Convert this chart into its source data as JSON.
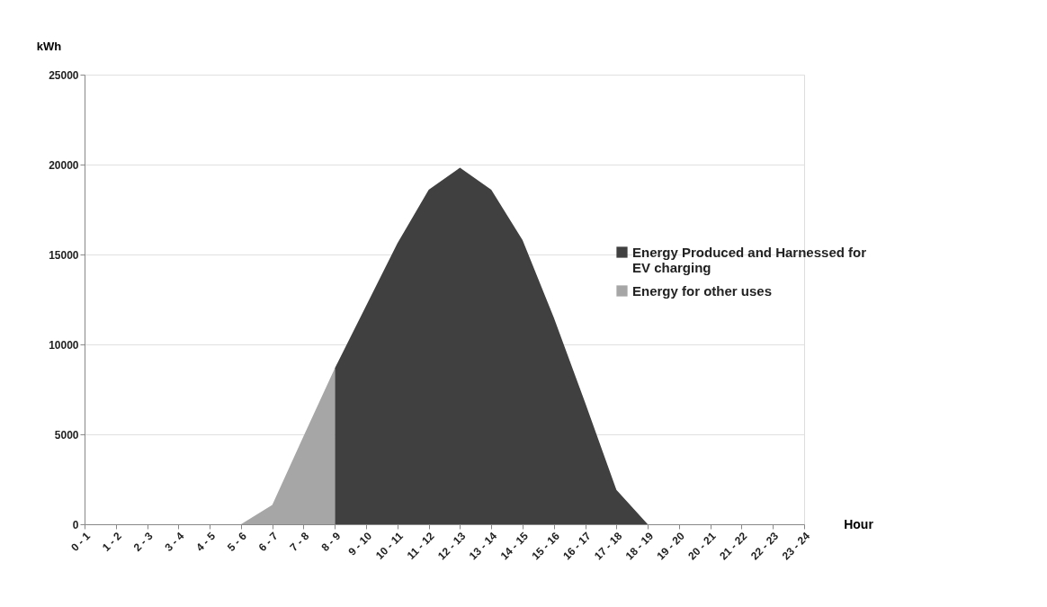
{
  "chart_data": {
    "type": "area",
    "xlabel": "Hour",
    "ylabel": "kWh",
    "categories": [
      "0 - 1",
      "1 - 2",
      "2 - 3",
      "3 - 4",
      "4 - 5",
      "5 - 6",
      "6 - 7",
      "7 - 8",
      "8 - 9",
      "9 - 10",
      "10 - 11",
      "11 - 12",
      "12 - 13",
      "13 - 14",
      "14 - 15",
      "15 - 16",
      "16 - 17",
      "17 - 18",
      "18 - 19",
      "19 - 20",
      "20 - 21",
      "21 - 22",
      "22 - 23",
      "23 - 24"
    ],
    "series": [
      {
        "name": "Energy Produced and Harnessed for EV charging",
        "color": "#404040",
        "values": [
          null,
          null,
          null,
          null,
          null,
          null,
          null,
          null,
          8680,
          12150,
          15620,
          18600,
          19830,
          18600,
          15800,
          11490,
          6760,
          1910,
          0,
          0,
          0,
          0,
          0,
          0
        ]
      },
      {
        "name": "Energy for other uses",
        "color": "#a6a6a6",
        "values": [
          0,
          0,
          0,
          0,
          0,
          0,
          1080,
          4900,
          8680,
          null,
          null,
          null,
          null,
          null,
          null,
          null,
          null,
          null,
          null,
          null,
          null,
          null,
          null,
          null
        ]
      }
    ],
    "ylim": [
      0,
      25000
    ],
    "yticks": [
      0,
      5000,
      10000,
      15000,
      20000,
      25000
    ],
    "grid": "y",
    "legend": "right"
  }
}
